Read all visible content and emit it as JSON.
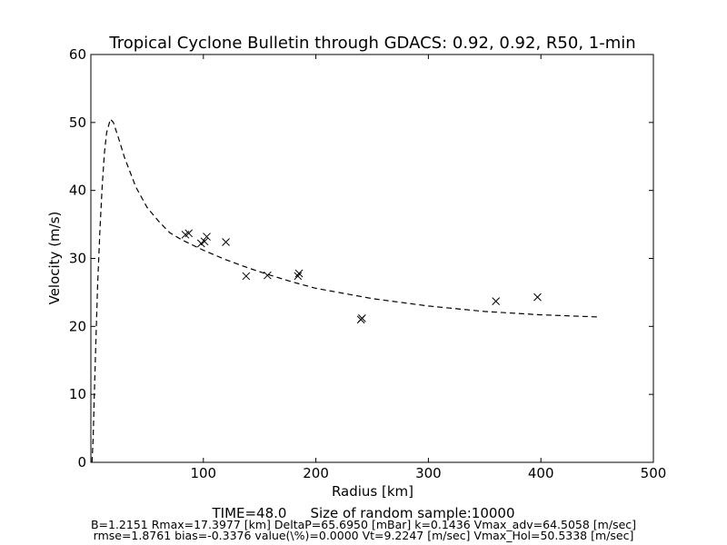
{
  "chart_data": {
    "type": "scatter",
    "title": "Tropical Cyclone Bulletin through GDACS: 0.92, 0.92, R50, 1-min",
    "xlabel": "Radius [km]",
    "ylabel": "Velocity (m/s)",
    "xlim": [
      0,
      500
    ],
    "ylim": [
      0,
      60
    ],
    "x_ticks": [
      100,
      200,
      300,
      400,
      500
    ],
    "y_ticks": [
      0,
      10,
      20,
      30,
      40,
      50,
      60
    ],
    "grid": false,
    "legend": "none",
    "series": [
      {
        "kind": "line",
        "style": "dashed",
        "color": "#000000",
        "x": [
          1,
          2,
          3,
          4,
          6,
          8,
          10,
          12,
          14,
          17.4,
          20,
          25,
          30,
          40,
          50,
          60,
          70,
          80,
          90,
          100,
          120,
          140,
          160,
          180,
          200,
          250,
          300,
          350,
          400,
          450
        ],
        "y": [
          0.0,
          3.5,
          9.5,
          15.5,
          26.0,
          34.0,
          40.5,
          45.5,
          48.5,
          50.5,
          50.0,
          47.5,
          44.8,
          40.5,
          37.5,
          35.5,
          33.8,
          32.8,
          32.0,
          31.2,
          29.8,
          28.6,
          27.5,
          26.5,
          25.6,
          24.1,
          23.0,
          22.2,
          21.7,
          21.4
        ]
      },
      {
        "kind": "markers",
        "marker": "x",
        "color": "#000000",
        "x": [
          84,
          87,
          98,
          101,
          103,
          120,
          138,
          157,
          184,
          185,
          240,
          241,
          360,
          397
        ],
        "y": [
          33.5,
          33.7,
          32.2,
          32.5,
          33.2,
          32.4,
          27.4,
          27.5,
          27.4,
          27.8,
          21.0,
          21.2,
          23.7,
          24.3
        ]
      }
    ]
  },
  "footer": {
    "time": "TIME=48.0",
    "sample": "Size of random sample:10000",
    "params_line1": "B=1.2151 Rmax=17.3977 [km]  DeltaP=65.6950 [mBar] k=0.1436 Vmax_adv=64.5058 [m/sec]",
    "params_line2": "rmse=1.8761 bias=-0.3376 value(\\%)=0.0000 Vt=9.2247 [m/sec] Vmax_Hol=50.5338 [m/sec]"
  }
}
